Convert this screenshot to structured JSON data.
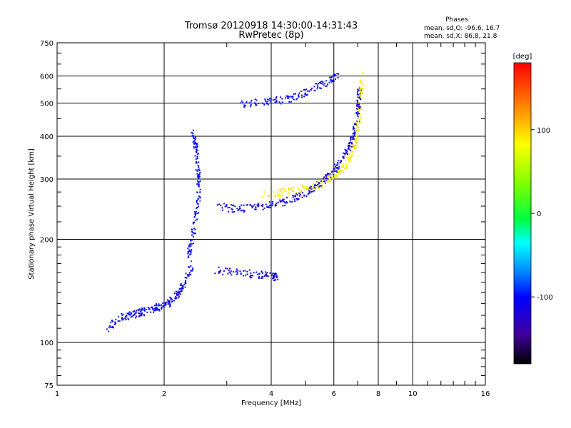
{
  "chart_data": {
    "type": "scatter",
    "title": "Tromsø 20120918 14:30:00-14:31:43",
    "subtitle": "RwPretec (8p)",
    "xlabel": "Frequency [MHz]",
    "ylabel": "Stationary phase Virtual Height [km]",
    "x_scale": "log",
    "y_scale": "log",
    "xlim": [
      1,
      16
    ],
    "ylim": [
      75,
      750
    ],
    "x_ticks": [
      "1",
      "2",
      "4",
      "6",
      "8",
      "10",
      "16"
    ],
    "y_ticks": [
      "75",
      "100",
      "200",
      "300",
      "400",
      "500",
      "600",
      "750"
    ],
    "grid": true,
    "phases_box": {
      "title": "Phases",
      "line_o": "mean, sd,O: -96.6, 16.7",
      "line_x": "mean, sd,X:  86.8, 21.8"
    },
    "colorbar": {
      "label": "[deg]",
      "ticks": [
        "100",
        "0",
        "-100"
      ],
      "tick_values": [
        100,
        0,
        -100
      ],
      "range": [
        -180,
        180
      ]
    },
    "traces": [
      {
        "kind": "E-layer",
        "x": [
          1.38,
          1.5,
          1.6,
          1.7,
          1.8,
          1.9,
          2.0,
          2.1,
          2.2,
          2.3,
          2.4
        ],
        "y": [
          108,
          118,
          120,
          122,
          124,
          126,
          128,
          132,
          140,
          152,
          170
        ],
        "phase": -105
      },
      {
        "kind": "F1 cusp",
        "x": [
          2.35,
          2.4,
          2.45,
          2.5,
          2.5,
          2.48,
          2.45,
          2.4
        ],
        "y": [
          180,
          200,
          230,
          260,
          300,
          340,
          380,
          410
        ],
        "phase": -100
      },
      {
        "kind": "F-layer O",
        "x": [
          2.8,
          3.2,
          3.6,
          4.0,
          4.4,
          4.8,
          5.2,
          5.6,
          6.0,
          6.3,
          6.6,
          6.8,
          7.0,
          7.05,
          7.1
        ],
        "y": [
          250,
          245,
          248,
          252,
          258,
          268,
          280,
          295,
          315,
          340,
          370,
          400,
          440,
          500,
          560
        ],
        "phase": -110
      },
      {
        "kind": "F-layer X",
        "x": [
          3.8,
          4.4,
          5.0,
          5.6,
          6.1,
          6.5,
          6.8,
          7.0,
          7.1,
          7.2
        ],
        "y": [
          270,
          275,
          282,
          292,
          308,
          330,
          360,
          400,
          480,
          600
        ],
        "phase": 85
      },
      {
        "kind": "E-sporadic",
        "x": [
          2.8,
          3.2,
          3.6,
          4.0,
          4.2
        ],
        "y": [
          162,
          160,
          158,
          156,
          155
        ],
        "phase": -110
      },
      {
        "kind": "Multi-hop",
        "x": [
          3.3,
          3.8,
          4.3,
          4.8,
          5.3,
          5.8,
          6.2
        ],
        "y": [
          498,
          505,
          510,
          525,
          555,
          580,
          600
        ],
        "phase": -105
      }
    ]
  }
}
